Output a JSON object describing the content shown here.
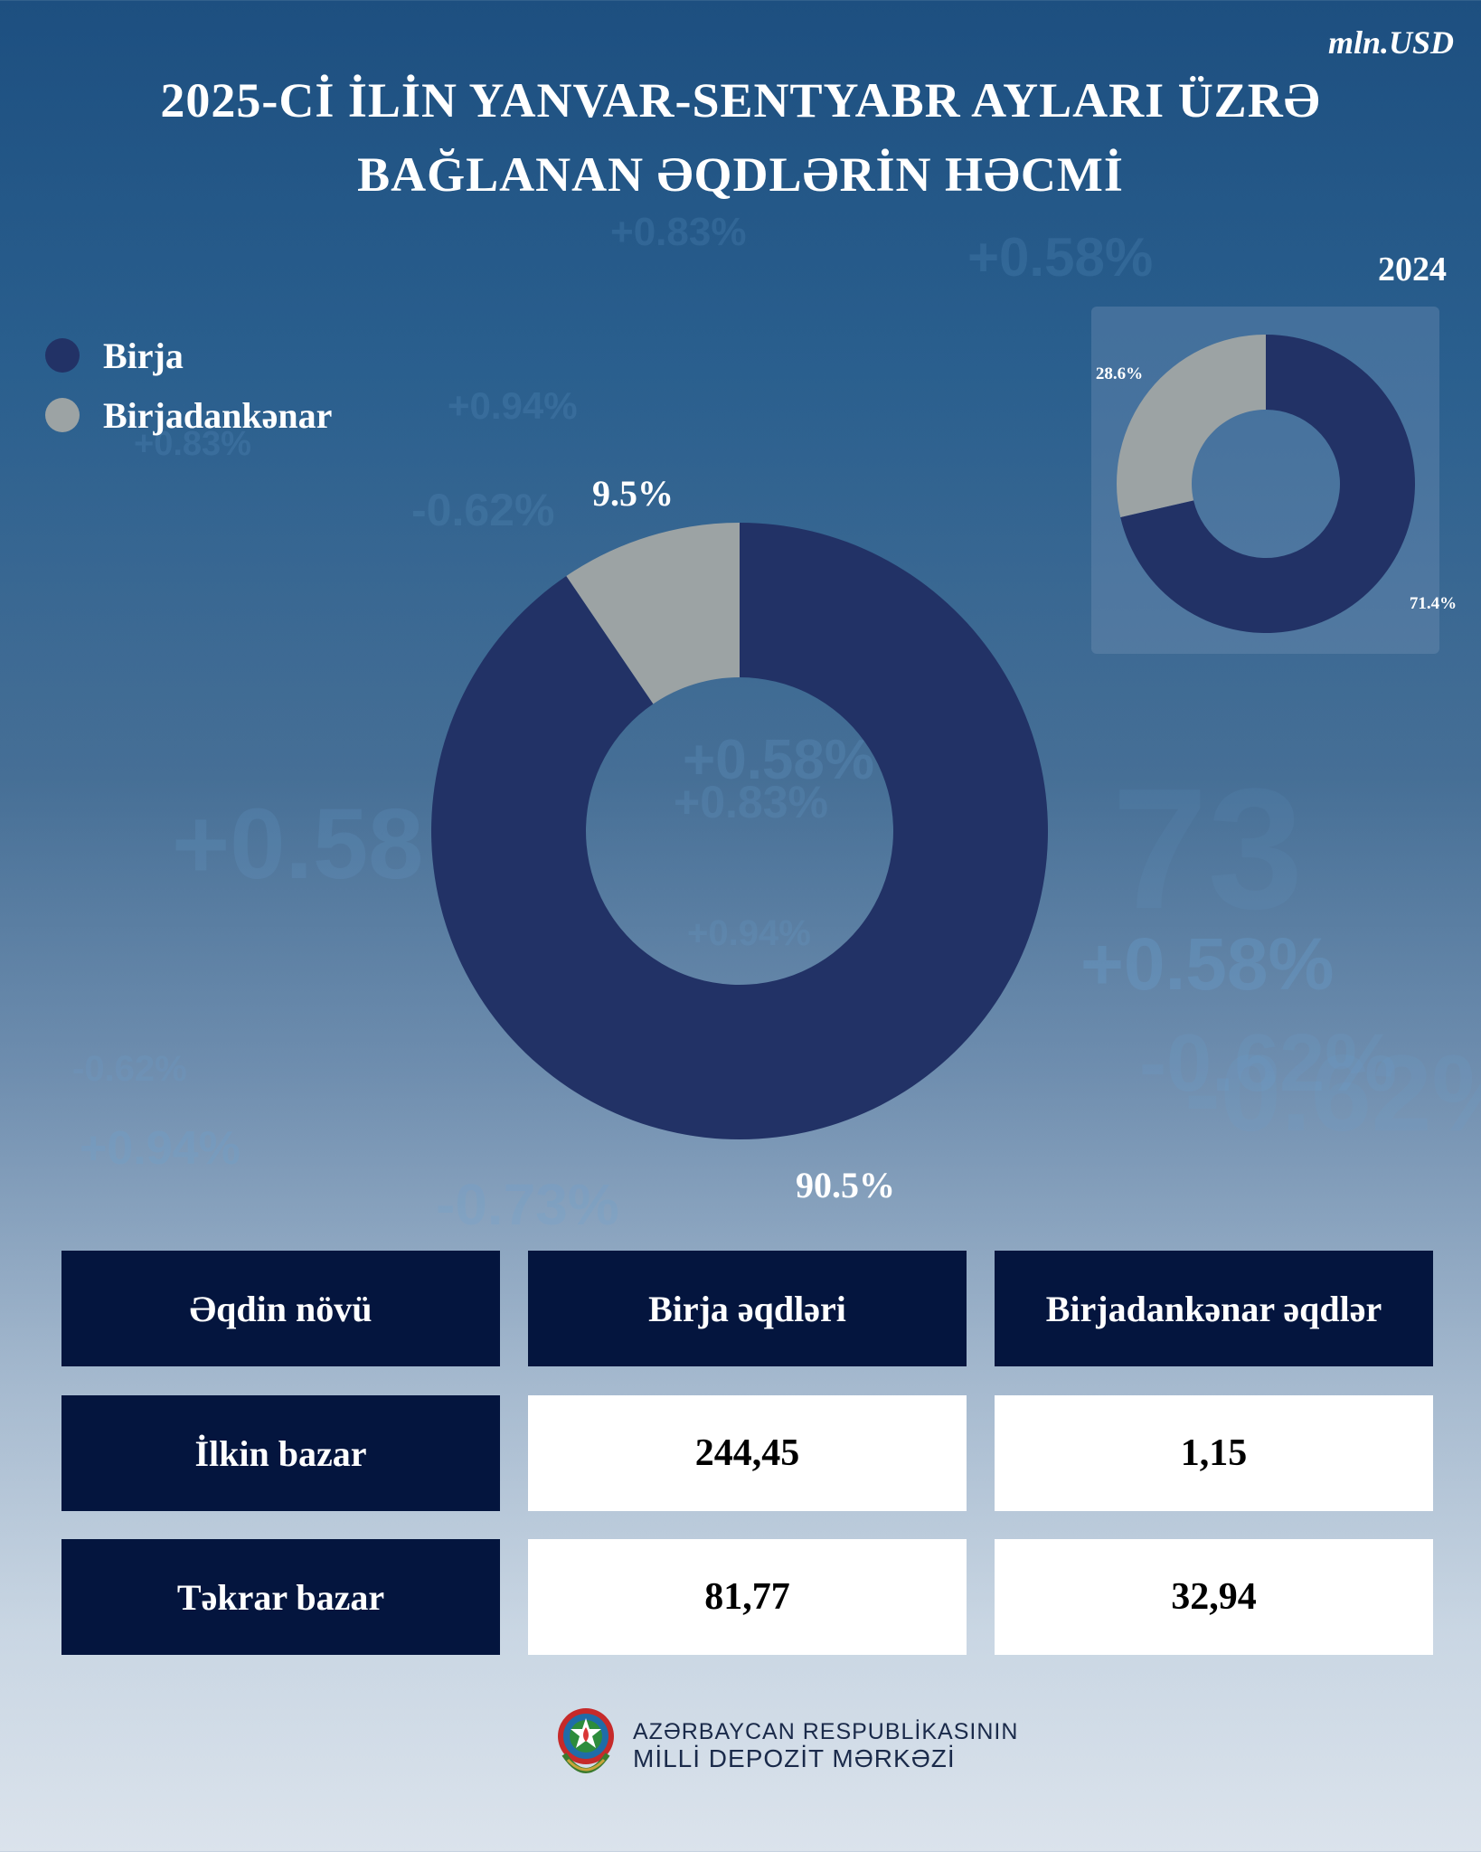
{
  "unit": "mln.USD",
  "title_line1": "2025-Cİ İLİN YANVAR-SENTYABR AYLARI ÜZRƏ",
  "title_line2": "BAĞLANAN ƏQDLƏRİN HƏCMİ",
  "legend": [
    {
      "label": "Birja",
      "color": "#223266"
    },
    {
      "label": "Birjadankənar",
      "color": "#9ca3a4"
    }
  ],
  "chart_data": [
    {
      "type": "pie",
      "title": "",
      "categories": [
        "Birja",
        "Birjadankənar"
      ],
      "values": [
        90.5,
        9.5
      ],
      "labels": [
        "90.5%",
        "9.5%"
      ],
      "colors": [
        "#223266",
        "#9ca3a4"
      ],
      "donut": true
    },
    {
      "type": "pie",
      "title": "2024",
      "categories": [
        "Birja",
        "Birjadankənar"
      ],
      "values": [
        71.4,
        28.6
      ],
      "labels": [
        "71.4%",
        "28.6%"
      ],
      "colors": [
        "#223266",
        "#9ca3a4"
      ],
      "donut": true
    },
    {
      "type": "table",
      "columns": [
        "Əqdin növü",
        "Birja əqdləri",
        "Birjadankənar əqdlər"
      ],
      "rows": [
        [
          "İlkin bazar",
          "244,45",
          "1,15"
        ],
        [
          "Təkrar bazar",
          "81,77",
          "32,94"
        ]
      ]
    }
  ],
  "footer": {
    "line1": "AZƏRBAYCAN RESPUBLİKASININ",
    "line2": "MİLLİ DEPOZİT MƏRKƏZİ"
  },
  "background_numbers": [
    "+0.83%",
    "+0.58%",
    "+0.94%",
    "+0.83%",
    "-0.62%",
    "+0.58%",
    "+0.83%",
    "+0.94%",
    "+0.58",
    "+0.58%",
    "-0.62%",
    "-0.62%",
    "+0.94%",
    "-0.73%",
    "-0.62%",
    "73"
  ]
}
